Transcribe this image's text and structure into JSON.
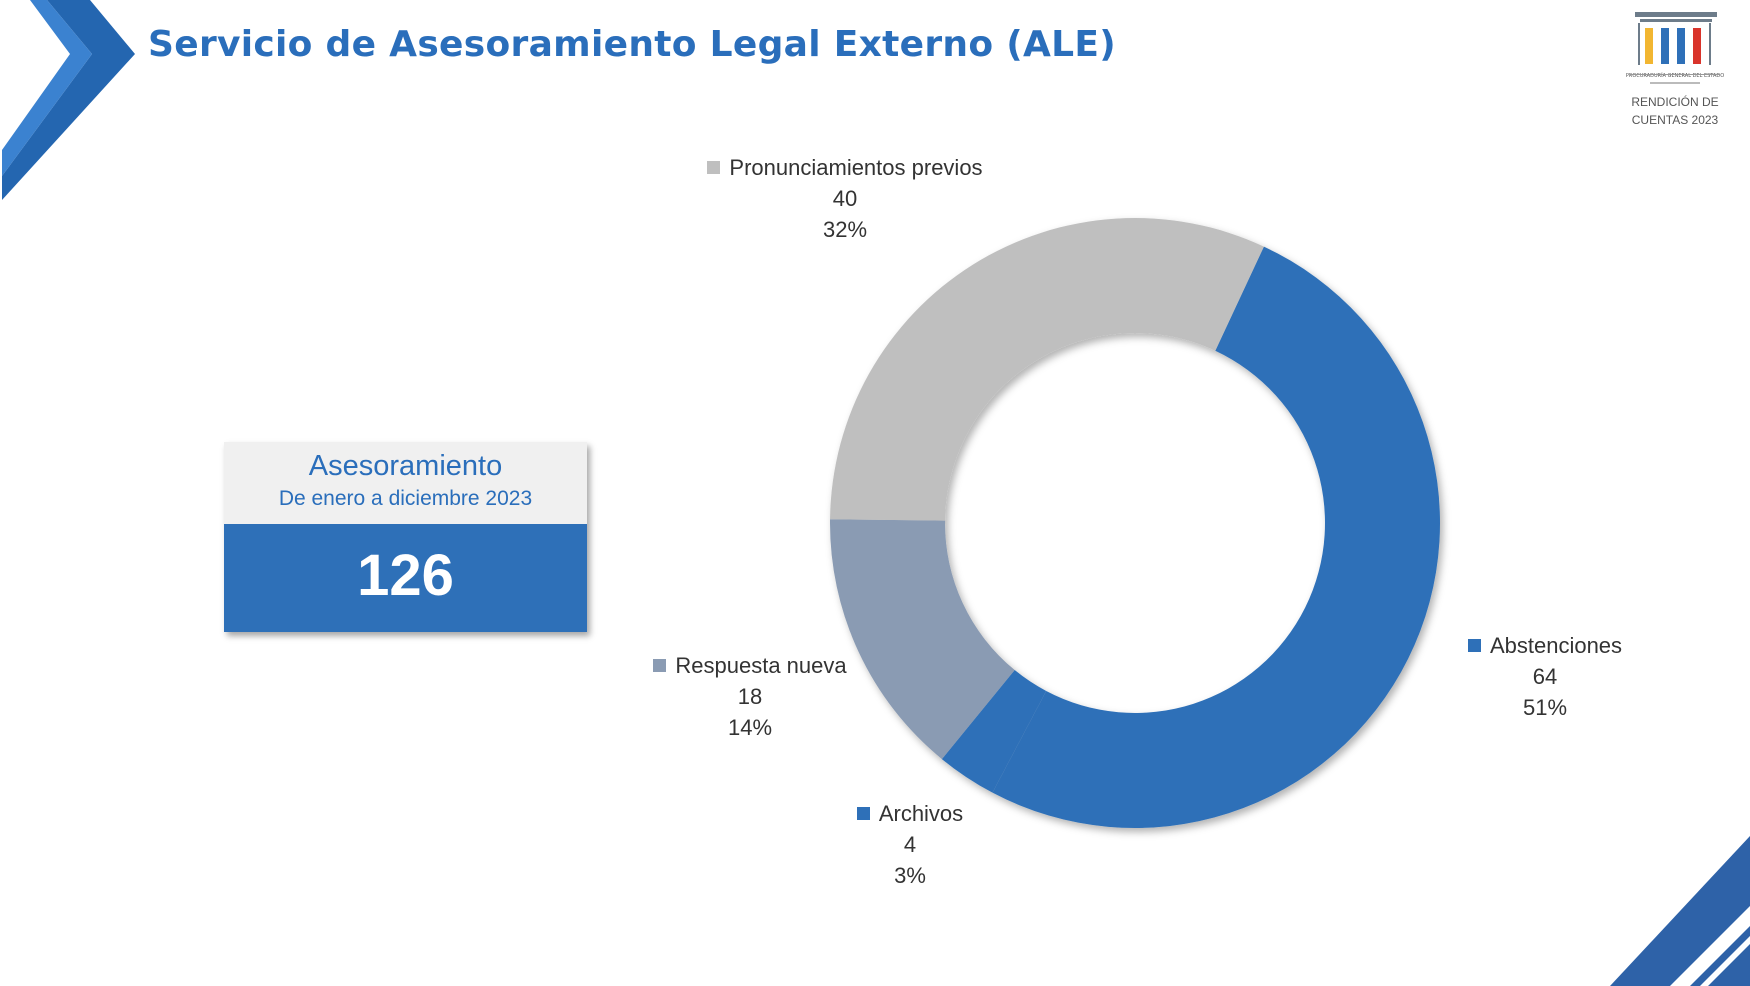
{
  "header": {
    "title": "Servicio de Asesoramiento Legal Externo (ALE)"
  },
  "logo": {
    "org_text": "PROCURADURÍA GENERAL DEL ESTADO",
    "caption_line1": "RENDICIÓN DE",
    "caption_line2": "CUENTAS 2023",
    "colors": [
      "#f2b631",
      "#2e70b8",
      "#d9342b"
    ]
  },
  "kpi": {
    "label": "Asesoramiento",
    "period": "De enero a diciembre 2023",
    "value": "126"
  },
  "chart_data": {
    "type": "pie",
    "style": "donut",
    "slices": [
      {
        "label": "Abstenciones",
        "value": 64,
        "percent": "51%",
        "color": "#2e70b8"
      },
      {
        "label": "Archivos",
        "value": 4,
        "percent": "3%",
        "color": "#2e70b8"
      },
      {
        "label": "Respuesta nueva",
        "value": 18,
        "percent": "14%",
        "color": "#8a9bb3"
      },
      {
        "label": "Pronunciamientos previos",
        "value": 40,
        "percent": "32%",
        "color": "#bfbfbf"
      }
    ],
    "legend": "labels next to slices"
  },
  "theme": {
    "accent": "#2a6ebb",
    "dark_blue": "#2e70b8"
  }
}
